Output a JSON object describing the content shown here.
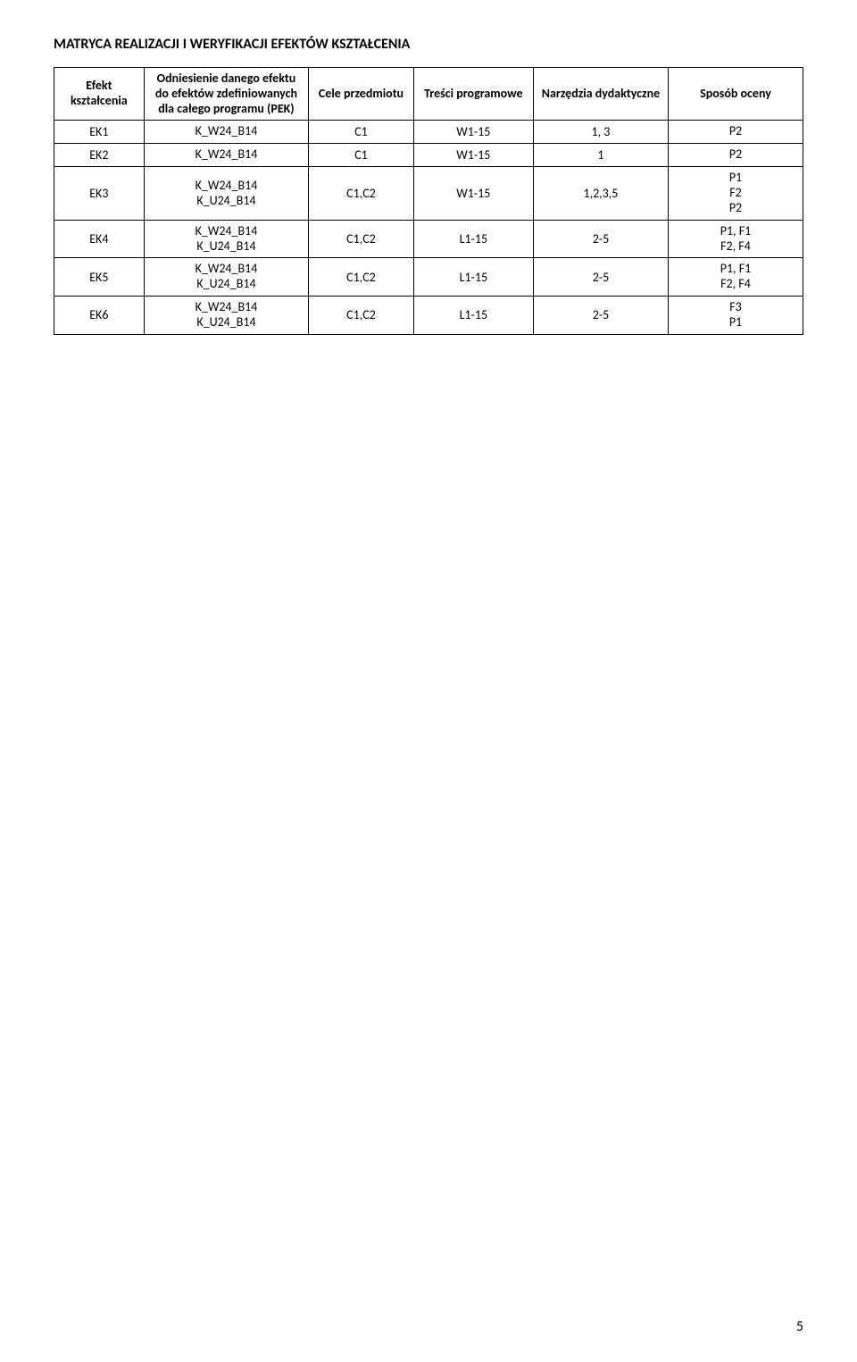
{
  "heading": "MATRYCA REALIZACJI I WERYFIKACJI EFEKTÓW KSZTAŁCENIA",
  "headers": {
    "col1": "Efekt kształcenia",
    "col2": "Odniesienie danego efektu do efektów zdefiniowanych dla całego programu (PEK)",
    "col3": "Cele przedmiotu",
    "col4": "Treści programowe",
    "col5": "Narzędzia dydaktyczne",
    "col6": "Sposób oceny"
  },
  "rows": [
    {
      "c1": "EK1",
      "c2": "K_W24_B14",
      "c3": "C1",
      "c4": "W1-15",
      "c5": "1, 3",
      "c6": "P2"
    },
    {
      "c1": "EK2",
      "c2": "K_W24_B14",
      "c3": "C1",
      "c4": "W1-15",
      "c5": "1",
      "c6": "P2"
    },
    {
      "c1": "EK3",
      "c2": "K_W24_B14\nK_U24_B14",
      "c3": "C1,C2",
      "c4": "W1-15",
      "c5": "1,2,3,5",
      "c6": "P1\nF2\nP2"
    },
    {
      "c1": "EK4",
      "c2": "K_W24_B14\nK_U24_B14",
      "c3": "C1,C2",
      "c4": "L1-15",
      "c5": "2-5",
      "c6": "P1, F1\nF2, F4"
    },
    {
      "c1": "EK5",
      "c2": "K_W24_B14\nK_U24_B14",
      "c3": "C1,C2",
      "c4": "L1-15",
      "c5": "2-5",
      "c6": "P1, F1\nF2, F4"
    },
    {
      "c1": "EK6",
      "c2": "K_W24_B14\nK_U24_B14",
      "c3": "C1,C2",
      "c4": "L1-15",
      "c5": "2-5",
      "c6": "F3\nP1"
    }
  ],
  "pageNumber": "5",
  "colors": {
    "background": "#ffffff",
    "border": "#000000",
    "text": "#000000"
  },
  "fontSize": {
    "heading": 16,
    "cell": 14,
    "page": 16
  }
}
